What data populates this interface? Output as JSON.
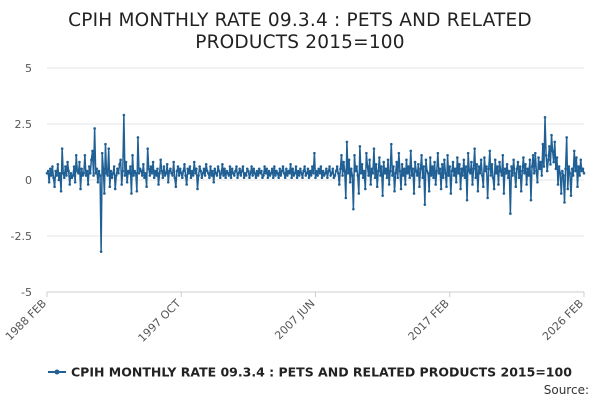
{
  "chart_data": {
    "type": "line",
    "title": "CPIH MONTHLY RATE 09.3.4 : PETS AND RELATED PRODUCTS 2015=100",
    "title_lines": [
      "CPIH MONTHLY RATE 09.3.4 : PETS AND RELATED",
      "PRODUCTS 2015=100"
    ],
    "xlabel": "",
    "ylabel": "",
    "x_ticks": [
      "1988 FEB",
      "1997 OCT",
      "2007 JUN",
      "2017 FEB",
      "2026 FEB"
    ],
    "ylim": [
      -5,
      5
    ],
    "y_ticks": [
      5,
      2.5,
      0,
      -2.5,
      -5
    ],
    "y_tick_labels": [
      "5",
      "2.5",
      "0",
      "-2.5",
      "-5"
    ],
    "grid": "horizontal",
    "legend_position": "bottom",
    "source_label": "Source:",
    "series_color": "#206095",
    "series": [
      {
        "name": "CPIH MONTHLY RATE 09.3.4 : PETS AND RELATED PRODUCTS 2015=100",
        "start": "1988 FEB",
        "frequency": "monthly",
        "values": [
          0.3,
          0.4,
          -0.1,
          0.5,
          0.2,
          0.6,
          0.1,
          -0.3,
          0.4,
          0.2,
          0.7,
          0.0,
          0.3,
          -0.5,
          1.4,
          0.3,
          0.1,
          0.6,
          0.2,
          0.8,
          0.4,
          -0.2,
          0.3,
          0.1,
          0.2,
          0.6,
          -0.1,
          1.1,
          0.4,
          0.3,
          0.8,
          -0.4,
          0.5,
          0.2,
          0.3,
          1.1,
          0.2,
          0.4,
          -0.2,
          0.6,
          0.3,
          0.9,
          1.3,
          0.2,
          2.3,
          0.3,
          0.5,
          -0.1,
          0.4,
          0.2,
          -3.2,
          1.2,
          0.5,
          -0.6,
          1.6,
          0.3,
          0.2,
          1.4,
          -0.3,
          0.4,
          0.1,
          0.3,
          0.6,
          -0.4,
          0.2,
          0.5,
          0.3,
          0.7,
          0.9,
          -0.2,
          0.4,
          2.9,
          0.2,
          0.8,
          -0.1,
          0.4,
          0.3,
          0.6,
          -0.6,
          1.1,
          0.2,
          0.4,
          0.3,
          -0.5,
          1.9,
          0.3,
          0.5,
          0.4,
          0.2,
          0.7,
          0.1,
          0.3,
          -0.3,
          1.4,
          0.5,
          0.2,
          0.6,
          0.3,
          0.8,
          0.1,
          0.4,
          0.2,
          0.5,
          -0.2,
          0.3,
          0.9,
          0.4,
          0.1,
          0.6,
          0.2,
          0.3,
          0.7,
          -0.1,
          0.4,
          0.5,
          0.3,
          0.2,
          0.8,
          0.1,
          -0.3,
          0.4,
          0.6,
          0.2,
          0.5,
          0.3,
          0.1,
          0.4,
          0.7,
          0.2,
          -0.2,
          0.5,
          0.3,
          0.6,
          0.1,
          0.4,
          0.2,
          0.8,
          0.3,
          0.5,
          -0.4,
          0.2,
          0.6,
          0.4,
          0.1,
          0.3,
          0.5,
          0.2,
          0.7,
          0.4,
          0.3,
          0.1,
          0.6,
          0.2,
          0.4,
          -0.1,
          0.5,
          0.3,
          0.2,
          0.6,
          0.4,
          0.1,
          0.3,
          0.7,
          0.2,
          0.5,
          0.1,
          0.4,
          0.3,
          0.2,
          0.6,
          0.1,
          0.5,
          0.3,
          0.2,
          0.4,
          0.6,
          0.1,
          0.3,
          0.5,
          0.2,
          0.4,
          0.6,
          0.1,
          0.3,
          0.2,
          0.5,
          0.4,
          0.1,
          0.3,
          0.6,
          0.2,
          0.5,
          0.3,
          0.1,
          0.4,
          0.2,
          0.5,
          0.3,
          0.4,
          0.1,
          0.2,
          0.6,
          0.3,
          0.5,
          0.1,
          0.4,
          0.2,
          0.3,
          0.5,
          0.1,
          0.6,
          0.2,
          0.4,
          0.3,
          0.1,
          0.5,
          0.2,
          0.4,
          0.6,
          0.3,
          0.1,
          0.5,
          0.2,
          0.4,
          0.3,
          0.7,
          0.1,
          0.5,
          0.2,
          0.3,
          0.6,
          0.1,
          0.4,
          0.2,
          0.5,
          0.3,
          0.1,
          0.4,
          0.6,
          0.2,
          0.3,
          0.5,
          0.1,
          0.4,
          0.2,
          0.6,
          0.3,
          1.2,
          0.1,
          0.4,
          0.2,
          0.5,
          0.3,
          0.6,
          0.1,
          0.4,
          0.2,
          0.3,
          0.5,
          0.1,
          0.4,
          0.6,
          0.2,
          0.3,
          0.5,
          0.1,
          0.2,
          0.4,
          0.6,
          0.3,
          -0.2,
          0.5,
          1.1,
          0.2,
          0.8,
          0.4,
          -0.8,
          1.7,
          0.3,
          0.9,
          -0.1,
          0.5,
          0.2,
          -1.3,
          1.1,
          0.4,
          0.6,
          0.2,
          -0.6,
          1.5,
          0.3,
          0.7,
          0.1,
          0.4,
          -0.4,
          1.2,
          0.6,
          0.2,
          0.9,
          -0.2,
          0.5,
          0.3,
          1.4,
          0.1,
          0.7,
          -0.3,
          0.4,
          1.0,
          0.2,
          0.6,
          -0.7,
          0.8,
          0.3,
          0.5,
          0.1,
          0.9,
          -0.2,
          0.4,
          1.6,
          0.2,
          0.6,
          -0.5,
          0.3,
          0.8,
          0.1,
          1.2,
          0.4,
          -0.4,
          0.7,
          0.2,
          0.5,
          -0.2,
          0.9,
          0.3,
          0.6,
          0.1,
          1.3,
          0.2,
          0.5,
          -0.6,
          0.8,
          0.4,
          0.2,
          0.7,
          -0.3,
          0.5,
          1.1,
          0.1,
          0.6,
          -1.1,
          0.9,
          0.4,
          0.3,
          -0.5,
          1.0,
          0.2,
          0.6,
          0.1,
          0.8,
          -0.2,
          0.4,
          1.2,
          0.3,
          0.5,
          -0.4,
          0.7,
          0.1,
          0.9,
          0.3,
          -0.3,
          1.1,
          0.2,
          0.6,
          -0.6,
          0.4,
          0.8,
          0.2,
          0.5,
          -0.1,
          1.0,
          0.3,
          0.7,
          -0.4,
          0.5,
          0.2,
          0.9,
          0.1,
          0.6,
          -0.9,
          1.2,
          0.4,
          0.3,
          0.8,
          -0.2,
          0.5,
          1.4,
          0.1,
          0.7,
          -0.5,
          0.6,
          0.3,
          0.9,
          0.2,
          -0.3,
          1.0,
          0.4,
          0.6,
          -0.8,
          0.5,
          1.3,
          0.2,
          0.7,
          0.1,
          -0.4,
          0.9,
          0.3,
          0.6,
          -0.2,
          0.8,
          0.4,
          0.2,
          1.1,
          -0.6,
          0.5,
          0.3,
          0.7,
          0.1,
          0.4,
          -1.5,
          0.6,
          0.2,
          0.9,
          0.3,
          -0.3,
          0.5,
          0.8,
          0.1,
          0.6,
          -0.5,
          0.4,
          1.0,
          0.3,
          0.7,
          -0.2,
          0.5,
          0.2,
          0.9,
          -0.9,
          0.6,
          1.1,
          0.3,
          1.2,
          0.4,
          -0.1,
          1.0,
          0.5,
          0.8,
          0.2,
          1.6,
          0.6,
          2.8,
          1.1,
          0.4,
          0.9,
          1.5,
          0.7,
          2.0,
          1.3,
          0.8,
          1.7,
          0.5,
          1.0,
          -0.2,
          0.6,
          0.3,
          -0.6,
          0.4,
          0.2,
          -1.0,
          0.5,
          1.9,
          -0.4,
          0.6,
          0.3,
          -0.7,
          0.5,
          0.2,
          1.3,
          0.4,
          1.0,
          -0.3,
          0.6,
          0.2,
          0.9,
          0.4,
          0.5,
          0.3
        ]
      }
    ]
  }
}
